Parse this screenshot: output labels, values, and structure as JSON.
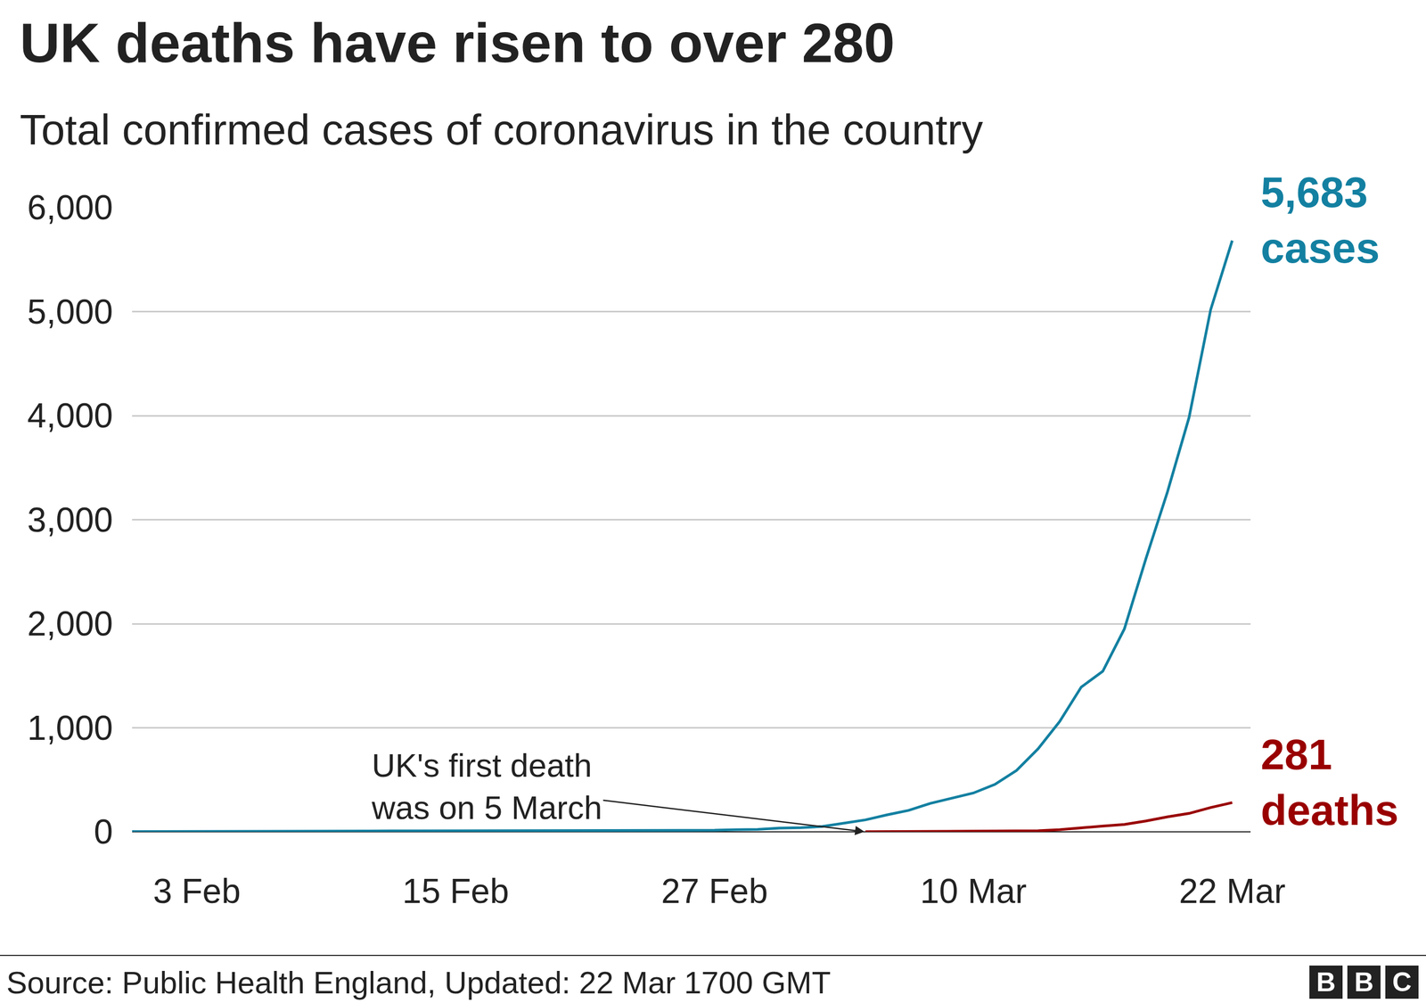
{
  "chart_data": {
    "type": "line",
    "title": "UK deaths have risen to over 280",
    "subtitle": "Total confirmed cases of coronavirus in the country",
    "categories": [
      null,
      null,
      null,
      "3 Feb",
      null,
      null,
      null,
      null,
      null,
      null,
      null,
      null,
      null,
      null,
      null,
      "15 Feb",
      null,
      null,
      null,
      null,
      null,
      null,
      null,
      null,
      null,
      null,
      null,
      "27 Feb",
      null,
      null,
      null,
      null,
      null,
      null,
      null,
      null,
      null,
      null,
      null,
      "10 Mar",
      null,
      null,
      null,
      null,
      null,
      null,
      null,
      null,
      null,
      null,
      null,
      "22 Mar"
    ],
    "series": [
      {
        "name": "cases",
        "color": "#1380a1",
        "label": [
          "5,683",
          "cases"
        ],
        "values": [
          2,
          2,
          2,
          2,
          2,
          2,
          3,
          3,
          3,
          4,
          8,
          8,
          9,
          9,
          9,
          9,
          9,
          9,
          9,
          9,
          9,
          9,
          9,
          9,
          13,
          13,
          13,
          15,
          20,
          23,
          36,
          40,
          51,
          85,
          115,
          163,
          206,
          273,
          321,
          373,
          456,
          590,
          798,
          1060,
          1391,
          1543,
          1950,
          2626,
          3269,
          3983,
          5018,
          5683
        ]
      },
      {
        "name": "deaths",
        "color": "#990000",
        "label": [
          "281",
          "deaths"
        ],
        "values": [
          null,
          null,
          null,
          null,
          null,
          null,
          null,
          null,
          null,
          null,
          null,
          null,
          null,
          null,
          null,
          null,
          null,
          null,
          null,
          null,
          null,
          null,
          null,
          null,
          null,
          null,
          null,
          null,
          null,
          null,
          null,
          null,
          null,
          null,
          1,
          2,
          2,
          3,
          4,
          6,
          8,
          8,
          10,
          21,
          35,
          55,
          71,
          104,
          144,
          177,
          233,
          281
        ]
      }
    ],
    "ylim": [
      0,
      6000
    ],
    "yticks": [
      0,
      {
        "value": 1000,
        "label": "1,000"
      },
      {
        "value": 2000,
        "label": "2,000"
      },
      {
        "value": 3000,
        "label": "3,000"
      },
      {
        "value": 4000,
        "label": "4,000"
      },
      {
        "value": 5000,
        "label": "5,000"
      },
      {
        "value": 6000,
        "label": "6,000"
      }
    ],
    "grid": true,
    "annotations": [
      {
        "text": [
          "UK's first death",
          "was on 5 March"
        ],
        "x": 34,
        "y": 0
      }
    ],
    "source": "Source: Public Health England, Updated: 22 Mar 1700 GMT",
    "logo": "BBC"
  }
}
